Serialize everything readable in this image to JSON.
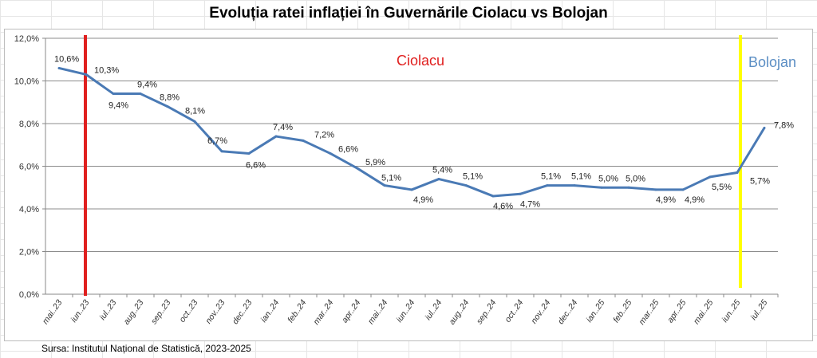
{
  "chart_data": {
    "type": "line",
    "title": "Evoluția ratei inflației în Guvernările Ciolacu vs Bolojan",
    "xlabel": "",
    "ylabel": "",
    "ylim": [
      0,
      12
    ],
    "yticks": [
      "0,0%",
      "2,0%",
      "4,0%",
      "6,0%",
      "8,0%",
      "10,0%",
      "12,0%"
    ],
    "ytick_values": [
      0,
      2,
      4,
      6,
      8,
      10,
      12
    ],
    "grid": true,
    "categories": [
      "mai..23",
      "iun..23",
      "iul..23",
      "aug..23",
      "sep..23",
      "oct..23",
      "nov..23",
      "dec..23",
      "ian..24",
      "feb..24",
      "mar..24",
      "apr..24",
      "mai..24",
      "iun..24",
      "iul..24",
      "aug..24",
      "sep..24",
      "oct..24",
      "nov..24",
      "dec..24",
      "ian..25",
      "feb..25",
      "mar..25",
      "apr..25",
      "mai..25",
      "iun..25",
      "iul..25"
    ],
    "series": [
      {
        "name": "Rata inflației",
        "color": "#4a7ab5",
        "values": [
          10.6,
          10.3,
          9.4,
          9.4,
          8.8,
          8.1,
          6.7,
          6.6,
          7.4,
          7.2,
          6.6,
          5.9,
          5.1,
          4.9,
          5.4,
          5.1,
          4.6,
          4.7,
          5.1,
          5.1,
          5.0,
          5.0,
          4.9,
          4.9,
          5.5,
          5.7,
          7.8
        ],
        "labels": [
          "10,6%",
          "10,3%",
          "9,4%",
          "9,4%",
          "8,8%",
          "8,1%",
          "6,7%",
          "6,6%",
          "7,4%",
          "7,2%",
          "6,6%",
          "5,9%",
          "5,1%",
          "4,9%",
          "5,4%",
          "5,1%",
          "4,6%",
          "4,7%",
          "5,1%",
          "5,1%",
          "5,0%",
          "5,0%",
          "4,9%",
          "4,9%",
          "5,5%",
          "5,7%",
          "7,8%"
        ]
      }
    ],
    "annotations": [
      {
        "text": "Ciolacu",
        "color": "#e0201f",
        "marker_category": "iun..23",
        "line_color": "#e0201f"
      },
      {
        "text": "Bolojan",
        "color": "#5b8ec4",
        "marker_category": "iun..25",
        "line_color": "#ffff00"
      }
    ]
  },
  "source": "Sursa: Institutul Național de Statistică, 2023-2025"
}
